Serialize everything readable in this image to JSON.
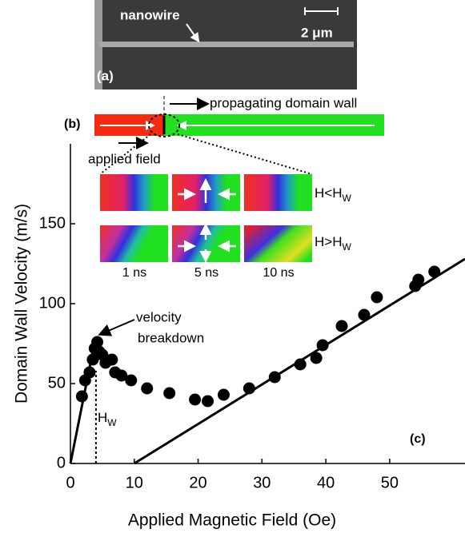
{
  "chart_data": {
    "type": "scatter",
    "xlabel": "Applied Magnetic Field (Oe)",
    "ylabel": "Domain Wall Velocity (m/s)",
    "xlim": [
      0,
      61.8
    ],
    "ylim": [
      0,
      200
    ],
    "xticks": [
      0,
      10,
      20,
      30,
      40,
      50
    ],
    "yticks": [
      0,
      50,
      100,
      150
    ],
    "color": "#000000",
    "x": [
      1.8,
      2.3,
      3,
      3.5,
      3.8,
      4.2,
      4.5,
      5,
      5.5,
      6.5,
      7,
      8,
      9.5,
      12,
      15.5,
      19.5,
      21.5,
      24,
      28,
      32,
      36,
      38.5,
      39.5,
      42.5,
      46,
      48,
      54,
      54.5,
      57
    ],
    "values": [
      42,
      52,
      57,
      65,
      72,
      76,
      70,
      68,
      63,
      65,
      57,
      55,
      52,
      47,
      44,
      40,
      39,
      43,
      47,
      54,
      62,
      66,
      74,
      86,
      93,
      104,
      111,
      115,
      120
    ],
    "lines": [
      {
        "x": [
          0,
          3.5
        ],
        "values": [
          0,
          70
        ],
        "style": "solid"
      },
      {
        "x": [
          10,
          61.8
        ],
        "values": [
          0,
          128
        ],
        "style": "solid"
      },
      {
        "x": [
          4,
          4
        ],
        "values": [
          0,
          58
        ],
        "style": "dashed"
      }
    ],
    "annotations": {
      "breakdown": [
        "velocity",
        "breakdown"
      ],
      "hw": {
        "main": "H",
        "sub": "W"
      },
      "panel": "(c)"
    }
  },
  "panel_a": {
    "label": "(a)",
    "nanowire": "nanowire",
    "scale": "2 μm"
  },
  "panel_b": {
    "label": "(b)",
    "wall": "propagating domain wall",
    "field": "applied field",
    "rows": [
      {
        "main": "H<H",
        "sub": "W"
      },
      {
        "main": "H>H",
        "sub": "W"
      }
    ],
    "times": [
      "1 ns",
      "5 ns",
      "10 ns"
    ]
  }
}
